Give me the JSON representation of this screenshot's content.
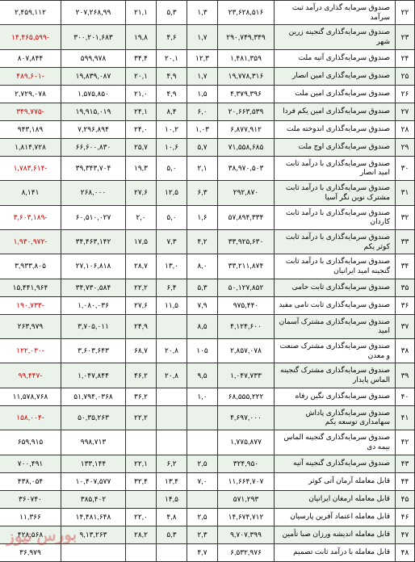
{
  "watermark": "بورس نیوز",
  "rows": [
    {
      "n": "۲۲",
      "name": "صندوق سرمایه گذاری درآمد ثبت سرآمد",
      "c1": "۲۳,۶۲۸,۵۱۶",
      "c2": "۱,۳",
      "c3": "۵,۳",
      "c4": "۲۱,۱",
      "c5": "۲۰۷,۲۶۸,۹۹",
      "c6": "۲,۴۵۹,۱۱۲",
      "alt": false,
      "neg6": false
    },
    {
      "n": "۲۳",
      "name": "صندوق سرمایه‌گذاری گنجینه زرین شهر",
      "c1": "۲۹۰,۷۴۹,۳۴۹",
      "c2": "۱,۷",
      "c3": "۴,۶",
      "c4": "۱۹,۸",
      "c5": "۳۰۰,۲۰۱,۶۸۳",
      "c6": "-۱۴,۴۶۵,۵۹۹",
      "alt": true,
      "neg6": true
    },
    {
      "n": "۲۴",
      "name": "صندوق سرمایه‌گذاری آتیه ملت",
      "c1": "۱,۴۸۱,۳۵۹",
      "c2": "۱۲,۳",
      "c3": "۲۰,۱",
      "c4": "۳۴,۴",
      "c5": "۵۹۹,۹۷۸",
      "c6": "۸۰۷,۸۴۴",
      "alt": false,
      "neg6": false
    },
    {
      "n": "۲۵",
      "name": "صندوق سرمایه‌گذاری امین انصار",
      "c1": "۱۹,۷۷۸,۳۱۶",
      "c2": "۱,۷",
      "c3": "۴,۹",
      "c4": "۲۰,۱",
      "c5": "۱۹,۸۳۹,۰۸۷",
      "c6": "-۴۸۹,۶۰۱",
      "alt": true,
      "neg6": true
    },
    {
      "n": "۲۶",
      "name": "صندوق سرمایه‌گذاری امین ملت",
      "c1": "۴,۳۷۹,۳۹۶",
      "c2": "۱,۵",
      "c3": "۴,۹",
      "c4": "۲۱,۰",
      "c5": "۱,۵۷۵,۸۵۰",
      "c6": "۲,۷۲۹,۰۷۸",
      "alt": false,
      "neg6": false
    },
    {
      "n": "۲۷",
      "name": "صندوق سرمایه‌گذاری امین یکم فردا",
      "c1": "۲۰,۶۶۳,۵۳۹",
      "c2": "۶,۰",
      "c3": "۸,۴",
      "c4": "۲۴,۱",
      "c5": "۱۹,۹۱۵,۰۱۹",
      "c6": "-۳۴۹,۷۷۵",
      "alt": true,
      "neg6": true
    },
    {
      "n": "۲۸",
      "name": "صندوق سرمایه‌گذاری اندوخته ملت",
      "c1": "۶,۸۷۷,۹۱۲",
      "c2": "۱,۰۳",
      "c3": "۱۰,۲",
      "c4": "۲۴,۰",
      "c5": "۷,۲۹۶,۸۹۴",
      "c6": "۹۴۳,۱۸۹",
      "alt": false,
      "neg6": false
    },
    {
      "n": "۲۹",
      "name": "صندوق سرمایه‌گذاری اوج ملت",
      "c1": "۷۱,۵۵۸,۶۸۵",
      "c2": "۵,۷",
      "c3": "۱۰,۶",
      "c4": "۲۵,۷",
      "c5": "۶۶,۶۰۰,۸۳۰",
      "c6": "۱,۸۱۴,۷۲۸",
      "alt": true,
      "neg6": false
    },
    {
      "n": "۳۰",
      "name": "صندوق سرمایه‌گذاری با درآمد ثابت امید انصار",
      "c1": "۳۸,۹۷۰,۵۰۳",
      "c2": "۲,۱",
      "c3": "۵,۰",
      "c4": "۱۹,۳",
      "c5": "۳۹,۳۴۳,۷۰۴",
      "c6": "-۱,۷۸۳,۶۱۴",
      "alt": false,
      "neg6": true
    },
    {
      "n": "۳۱",
      "name": "صندوق سرمایه‌گذاری با درآمد ثابت مشترک نوین نگر آسیا",
      "c1": "۲۹۲,۸۷۰",
      "c2": "۶,۳",
      "c3": "۱۲,۵",
      "c4": "۲۷,۶",
      "c5": "۲۶۸,۰۰۰",
      "c6": "۸,۱۴۱",
      "alt": true,
      "neg6": false
    },
    {
      "n": "۳۲",
      "name": "صندوق سرمایه‌گذاری با درآمد ثابت کاردان",
      "c1": "۵۷,۸۹۴,۳۳۴",
      "c2": "۱,۶",
      "c3": "۵,۰",
      "c4": "۲,۰",
      "c5": "۶۰,۵۱۰,۰۲۷",
      "c6": "-۳,۶۰۳,۱۸۹",
      "alt": false,
      "neg6": true
    },
    {
      "n": "۳۳",
      "name": "صندوق سرمایه‌گذاری با درآمد ثابت کوثر یکم",
      "c1": "۳۳,۹۲۵,۶۳۰",
      "c2": "۴,۲",
      "c3": "۷,۳",
      "c4": "۱۷,۵",
      "c5": "۳۴,۴۶۳,۱۴۲",
      "c6": "-۱,۹۳۰,۹۷۲",
      "alt": true,
      "neg6": true
    },
    {
      "n": "۳۴",
      "name": "صندوق سرمایه‌گذاری با درآمد ثابت گنجینه امید ایرانیان",
      "c1": "۳۳,۲۱۱,۸۷۴",
      "c2": "۸,۰",
      "c3": "۱۳,۰",
      "c4": "۲۸,۷",
      "c5": "۲۷,۱۰۶,۸۱۸",
      "c6": "۳,۹۳۳,۸۰۵",
      "alt": false,
      "neg6": false
    },
    {
      "n": "۳۵",
      "name": "صندوق سرمایه‌گذاری ثابت حامی",
      "c1": "۵۰,۱۲۷,۸۵۲",
      "c2": "۵,۳",
      "c3": "۶,۴",
      "c4": "۲۲,۲",
      "c5": "۳۴,۷۳۰,۵۸۴",
      "c6": "۱۵,۴۴۱,۹۶۴",
      "alt": true,
      "neg6": false
    },
    {
      "n": "۳۶",
      "name": "صندوق سرمایه‌گذاری ثابت نامی مفید",
      "c1": "۹۷۵,۴۴۰",
      "c2": "۷,۹",
      "c3": "۱۱,۵",
      "c4": "۲۷,۶",
      "c5": "۱,۰۸۰,۰۳۶",
      "c6": "-۱۹۰,۷۳۳",
      "alt": false,
      "neg6": true
    },
    {
      "n": "۳۷",
      "name": "صندوق سرمایه‌گذاری مشترک آسمان امید",
      "c1": "۴,۱۲۴,۶۰۰",
      "c2": "۸,۵",
      "c3": "",
      "c4": "۲۴,۹",
      "c5": "۳,۷۰۵,۰۱۱",
      "c6": "۲۶۳,۹۷۹",
      "alt": true,
      "neg6": false
    },
    {
      "n": "۳۸",
      "name": "صندوق سرمایه‌گذاری مشترک صنعت و معدن",
      "c1": "۲,۸۵۷,۰۷۸",
      "c2": "۱۰۵",
      "c3": "۲۰,۸",
      "c4": "۶۸,۷",
      "c5": "۳,۶۰۳,۶۴۳",
      "c6": "-۱۲۲,۰۳۰",
      "alt": false,
      "neg6": true
    },
    {
      "n": "۳۹",
      "name": "صندوق سرمایه‌گذاری مشترک گنجینه الماس پایدار",
      "c1": "۱,۰۴۷,۷۳۳",
      "c2": "۹,۵",
      "c3": "۲۰,۸",
      "c4": "۴۶,۲",
      "c5": "۱,۰۴۷,۸۴۴",
      "c6": "-۹۹,۴۴۷",
      "alt": true,
      "neg6": true
    },
    {
      "n": "۴۰",
      "name": "صندوق سرمایه‌گذاری نگین رفاه",
      "c1": "۶۸,۵۵۵,۲۲۲",
      "c2": "۱,۰",
      "c3": "",
      "c4": "۳۶,۲",
      "c5": "۵۱,۷۹۴,۰۳۶۸",
      "c6": "۱۱,۵۷۸,۷۶۸",
      "alt": false,
      "neg6": false
    },
    {
      "n": "۴۱",
      "name": "صندوق سرمایه‌گذاری پاداش سهامداری توسعه یکم",
      "c1": "۴,۶۹۷,۰۰۰",
      "c2": "",
      "c3": "",
      "c4": "۲۲,۲",
      "c5": "۵۰,۳۵,۲۶۳",
      "c6": "-۱۵۸,۰۰۴",
      "alt": true,
      "neg6": true
    },
    {
      "n": "۴۲",
      "name": "صندوق سرمایه‌گذاری گنجینه الماس بیمه دی",
      "c1": "۱,۷۷۵,۸۷۷",
      "c2": "",
      "c3": "",
      "c4": "",
      "c5": "۹۹۸,۷۱۳",
      "c6": "۶۵۹,۹۱۵",
      "alt": false,
      "neg6": false
    },
    {
      "n": "۴۳",
      "name": "صندوق سرمایه‌گذاری گنجینه آتیه",
      "c1": "۳۲۴,۹۵۰",
      "c2": "۲,۵",
      "c3": "۶,۲",
      "c4": "۲۲,۱",
      "c5": "۱۳۳,۱۴۴",
      "c6": "۷۰۰,۴۹۱",
      "alt": true,
      "neg6": false
    },
    {
      "n": "۴۴",
      "name": "قابل معامله آرمان آتی کوثر",
      "c1": "۱۱,۶۶۴,۷۰۷",
      "c2": "۷,۰",
      "c3": "۱۳,۴",
      "c4": "۳۲,۴",
      "c5": "۱۰,۴۰۷,۵۷۷",
      "c6": "۴۳۸,۰۵۴",
      "alt": false,
      "neg6": false
    },
    {
      "n": "۴۵",
      "name": "قابل معامله ارمغان ایرانیان",
      "c1": "۵۷۱,۲۹۳",
      "c2": "",
      "c3": "۱۴,۵",
      "c4": "",
      "c5": "۳۸۵,۴۰۲",
      "c6": "۳۶۰۷۴۰",
      "alt": true,
      "neg6": false
    },
    {
      "n": "۴۶",
      "name": "قابل معامله اعتماد آفرین پارسیان",
      "c1": "۱۴,۶۷۴,۷۱۲",
      "c2": "۲,۵",
      "c3": "۴,۸",
      "c4": "۲۲,۰",
      "c5": "۱۴,۴۸۱,۶۴۸",
      "c6": "۱۱,۳۶۶",
      "alt": false,
      "neg6": false
    },
    {
      "n": "۴۷",
      "name": "قابل معامله اندیشه ورزان صبا تأمین",
      "c1": "۹,۷۰۷,۳۹۹",
      "c2": "۲,۳",
      "c3": "۵,۳",
      "c4": "۲۸,۲",
      "c5": "۹,۱۳,۲۶۳",
      "c6": "۴۲۸,۵۶۸",
      "alt": true,
      "neg6": false
    },
    {
      "n": "۴۸",
      "name": "قابل معامله با درآمد ثابت تصمیم",
      "c1": "۶,۵۳۲,۹۷۶",
      "c2": "۴,۷",
      "c3": "",
      "c4": "",
      "c5": "",
      "c6": "۳۶,۹۷۹",
      "alt": false,
      "neg6": false
    }
  ]
}
